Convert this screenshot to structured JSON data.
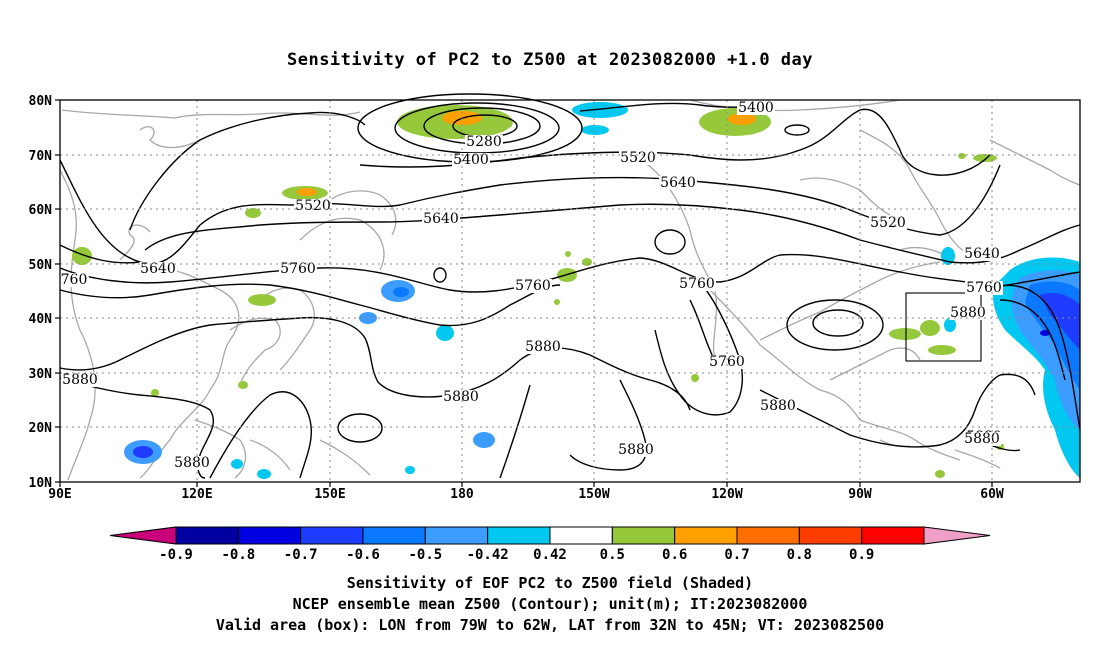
{
  "title": "Sensitivity of PC2 to Z500 at 2023082000 +1.0 day",
  "map": {
    "lat_labels": [
      "80N",
      "70N",
      "60N",
      "50N",
      "40N",
      "30N",
      "20N",
      "10N"
    ],
    "lon_labels": [
      "90E",
      "120E",
      "150E",
      "180",
      "150W",
      "120W",
      "90W",
      "60W"
    ],
    "contour_labels": [
      "5400",
      "5280",
      "5400",
      "5520",
      "5640",
      "5520",
      "5640",
      "5760",
      "5640",
      "5760",
      "5760",
      "5520",
      "5640",
      "5760",
      "5880",
      "5760",
      "5880",
      "5880",
      "5880",
      "5880",
      "5880",
      "5880",
      "5880",
      "760",
      "5880"
    ],
    "valid_box": {
      "lon_min": -79,
      "lon_max": -62,
      "lat_min": 32,
      "lat_max": 45
    }
  },
  "colorbar": {
    "ticks": [
      "-0.9",
      "-0.8",
      "-0.7",
      "-0.6",
      "-0.5",
      "-0.42",
      "0.42",
      "0.5",
      "0.6",
      "0.7",
      "0.8",
      "0.9"
    ],
    "colors": [
      "#c8007a",
      "#0000a0",
      "#0000e0",
      "#1e3cff",
      "#0a78ff",
      "#3c9cff",
      "#00c8f0",
      "#ffffff",
      "#96c83c",
      "#ffa000",
      "#ff6e00",
      "#ff3c00",
      "#ff0000",
      "#f0a0c8"
    ]
  },
  "captions": {
    "line1": "Sensitivity of EOF PC2 to Z500 field (Shaded)",
    "line2": "NCEP ensemble mean Z500 (Contour); unit(m); IT:2023082000",
    "line3": "Valid area (box): LON from 79W to 62W, LAT from 32N to 45N; VT: 2023082500"
  }
}
